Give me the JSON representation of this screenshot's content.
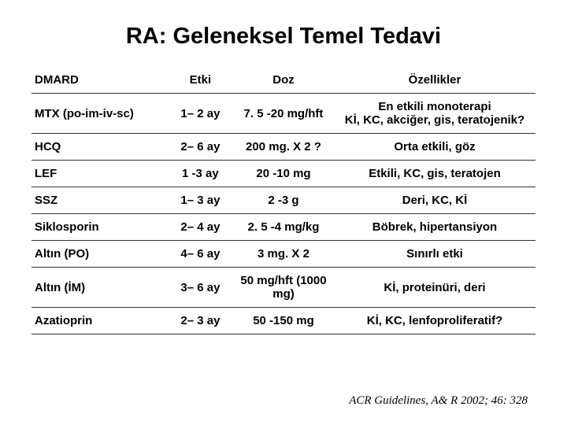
{
  "title": "RA: Geleneksel Temel Tedavi",
  "columns": [
    "DMARD",
    "Etki",
    "Doz",
    "Özellikler"
  ],
  "rows": [
    {
      "dmard": "MTX (po-im-iv-sc)",
      "etki": "1– 2 ay",
      "doz": "7. 5 -20 mg/hft",
      "ozel": "En etkili monoterapi\nKİ, KC, akciğer, gis, teratojenik?"
    },
    {
      "dmard": "HCQ",
      "etki": "2– 6 ay",
      "doz": "200 mg. X 2 ?",
      "ozel": "Orta etkili, göz"
    },
    {
      "dmard": "LEF",
      "etki": "1 -3 ay",
      "doz": "20 -10 mg",
      "ozel": "Etkili, KC, gis, teratojen"
    },
    {
      "dmard": "SSZ",
      "etki": "1– 3 ay",
      "doz": "2 -3 g",
      "ozel": "Deri, KC, Kİ"
    },
    {
      "dmard": "Siklosporin",
      "etki": "2– 4 ay",
      "doz": "2. 5 -4 mg/kg",
      "ozel": "Böbrek, hipertansiyon"
    },
    {
      "dmard": "Altın (PO)",
      "etki": "4– 6 ay",
      "doz": "3 mg. X 2",
      "ozel": "Sınırlı etki"
    },
    {
      "dmard": "Altın (İM)",
      "etki": "3– 6 ay",
      "doz": "50 mg/hft (1000 mg)",
      "ozel": "Kİ, proteinüri, deri"
    },
    {
      "dmard": "Azatioprin",
      "etki": "2– 3 ay",
      "doz": "50 -150 mg",
      "ozel": "Kİ, KC, lenfoproliferatif?"
    }
  ],
  "footer": "ACR Guidelines, A& R 2002; 46: 328",
  "styling": {
    "title_fontsize": 29,
    "title_color": "#000000",
    "cell_fontsize": 15,
    "border_color": "#333333",
    "background_color": "#ffffff",
    "font_family": "Arial",
    "footer_font_family": "Georgia",
    "footer_fontsize": 15,
    "column_widths_pct": [
      27,
      13,
      20,
      40
    ],
    "row_count": 8
  }
}
